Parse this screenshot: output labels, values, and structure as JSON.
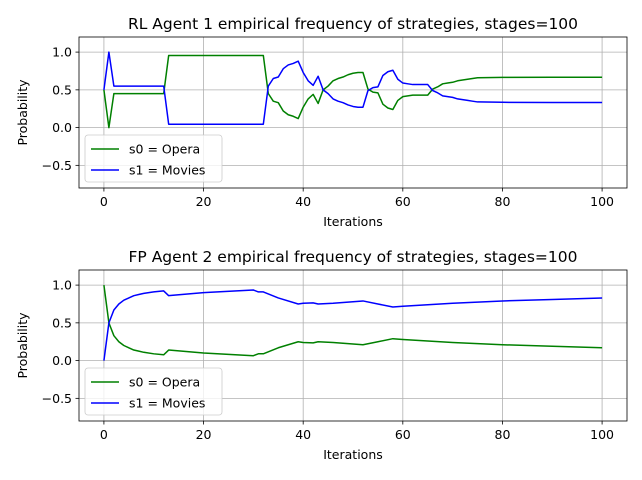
{
  "chart_data": [
    {
      "type": "line",
      "title": "RL Agent 1 empirical frequency of strategies, stages=100",
      "xlabel": "Iterations",
      "ylabel": "Probability",
      "xlim": [
        -5,
        105
      ],
      "ylim": [
        -0.8,
        1.2
      ],
      "xticks": [
        "0",
        "20",
        "40",
        "60",
        "80",
        "100"
      ],
      "yticks": [
        "−0.5",
        "0.0",
        "0.5",
        "1.0"
      ],
      "grid": true,
      "legend_position": "lower-left",
      "series": [
        {
          "name": "s0 = Opera",
          "color": "#008000",
          "x": [
            0,
            1,
            2,
            12,
            13,
            32,
            33,
            34,
            35,
            36,
            37,
            38,
            39,
            40,
            41,
            42,
            43,
            44,
            45,
            46,
            47,
            48,
            49,
            50,
            51,
            52,
            53,
            54,
            55,
            56,
            57,
            58,
            59,
            60,
            61,
            62,
            63,
            64,
            65,
            66,
            67,
            68,
            69,
            70,
            71,
            72,
            73,
            74,
            75,
            80,
            90,
            100
          ],
          "y": [
            0.5,
            0.0,
            0.45,
            0.45,
            0.955,
            0.955,
            0.45,
            0.35,
            0.33,
            0.22,
            0.17,
            0.15,
            0.12,
            0.27,
            0.38,
            0.44,
            0.32,
            0.5,
            0.55,
            0.62,
            0.65,
            0.67,
            0.7,
            0.72,
            0.73,
            0.73,
            0.51,
            0.47,
            0.46,
            0.31,
            0.26,
            0.24,
            0.36,
            0.41,
            0.42,
            0.43,
            0.43,
            0.43,
            0.43,
            0.51,
            0.54,
            0.58,
            0.59,
            0.6,
            0.62,
            0.63,
            0.64,
            0.65,
            0.66,
            0.665,
            0.667,
            0.667
          ]
        },
        {
          "name": "s1 = Movies",
          "color": "#0000ff",
          "x": [
            0,
            1,
            2,
            12,
            13,
            32,
            33,
            34,
            35,
            36,
            37,
            38,
            39,
            40,
            41,
            42,
            43,
            44,
            45,
            46,
            47,
            48,
            49,
            50,
            51,
            52,
            53,
            54,
            55,
            56,
            57,
            58,
            59,
            60,
            61,
            62,
            63,
            64,
            65,
            66,
            67,
            68,
            69,
            70,
            71,
            72,
            73,
            74,
            75,
            80,
            90,
            100
          ],
          "y": [
            0.5,
            1.0,
            0.55,
            0.55,
            0.045,
            0.045,
            0.55,
            0.65,
            0.67,
            0.78,
            0.83,
            0.85,
            0.88,
            0.73,
            0.62,
            0.56,
            0.68,
            0.5,
            0.45,
            0.38,
            0.35,
            0.33,
            0.3,
            0.28,
            0.27,
            0.27,
            0.49,
            0.53,
            0.54,
            0.69,
            0.74,
            0.76,
            0.64,
            0.59,
            0.58,
            0.57,
            0.57,
            0.57,
            0.57,
            0.49,
            0.46,
            0.42,
            0.41,
            0.4,
            0.38,
            0.37,
            0.36,
            0.35,
            0.34,
            0.335,
            0.333,
            0.333
          ]
        }
      ]
    },
    {
      "type": "line",
      "title": "FP Agent 2 empirical frequency of strategies, stages=100",
      "xlabel": "Iterations",
      "ylabel": "Probability",
      "xlim": [
        -5,
        105
      ],
      "ylim": [
        -0.8,
        1.2
      ],
      "xticks": [
        "0",
        "20",
        "40",
        "60",
        "80",
        "100"
      ],
      "yticks": [
        "−0.5",
        "0.0",
        "0.5",
        "1.0"
      ],
      "grid": true,
      "legend_position": "lower-left",
      "series": [
        {
          "name": "s0 = Opera",
          "color": "#008000",
          "x": [
            0,
            1,
            2,
            3,
            4,
            5,
            6,
            7,
            8,
            10,
            12,
            13,
            20,
            30,
            31,
            32,
            35,
            39,
            40,
            42,
            43,
            46,
            52,
            55,
            58,
            60,
            70,
            80,
            90,
            100
          ],
          "y": [
            1.0,
            0.5,
            0.33,
            0.25,
            0.2,
            0.17,
            0.14,
            0.125,
            0.11,
            0.09,
            0.077,
            0.14,
            0.1,
            0.065,
            0.09,
            0.09,
            0.17,
            0.25,
            0.24,
            0.235,
            0.25,
            0.24,
            0.21,
            0.25,
            0.29,
            0.28,
            0.24,
            0.21,
            0.19,
            0.17
          ]
        },
        {
          "name": "s1 = Movies",
          "color": "#0000ff",
          "x": [
            0,
            1,
            2,
            3,
            4,
            5,
            6,
            7,
            8,
            10,
            12,
            13,
            20,
            30,
            31,
            32,
            35,
            39,
            40,
            42,
            43,
            46,
            52,
            55,
            58,
            60,
            70,
            80,
            90,
            100
          ],
          "y": [
            0.0,
            0.5,
            0.67,
            0.75,
            0.8,
            0.83,
            0.86,
            0.875,
            0.89,
            0.91,
            0.923,
            0.86,
            0.9,
            0.935,
            0.91,
            0.91,
            0.83,
            0.75,
            0.76,
            0.765,
            0.75,
            0.76,
            0.79,
            0.75,
            0.71,
            0.72,
            0.76,
            0.79,
            0.81,
            0.83
          ]
        }
      ]
    }
  ]
}
